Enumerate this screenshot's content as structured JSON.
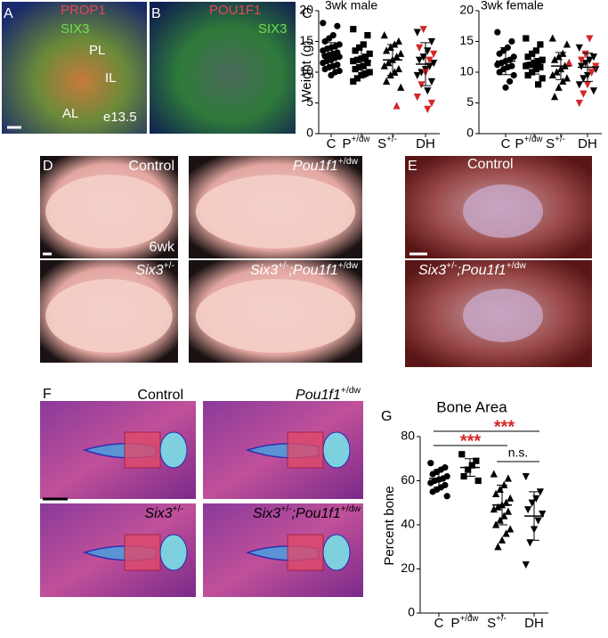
{
  "panel_letters": [
    "A",
    "B",
    "C",
    "D",
    "E",
    "F",
    "G"
  ],
  "images": [
    {
      "labels": [
        [
          {
            "text": "PROP1",
            "color": "#e8455a"
          }
        ],
        [
          {
            "text": "SIX3",
            "color": "#6fe04a"
          }
        ],
        [
          {
            "text": "PL"
          }
        ],
        [
          {
            "text": "IL"
          }
        ],
        [
          {
            "text": "AL"
          }
        ],
        [
          {
            "text": "e13.5"
          }
        ]
      ]
    },
    {
      "labels": [
        [
          {
            "text": "POU1F1",
            "color": "#e8455a"
          }
        ],
        [
          {
            "text": "SIX3",
            "color": "#6fe04a"
          }
        ]
      ]
    },
    {
      "labels": [
        [
          {
            "text": "Control"
          }
        ],
        [
          {
            "text": "6wk"
          }
        ]
      ]
    },
    {
      "labels": [
        [
          {
            "text": "Pou1f1",
            "italic": true
          },
          {
            "text": "+/dw",
            "sup": true
          }
        ]
      ]
    },
    {
      "labels": [
        [
          {
            "text": "Six3",
            "italic": true
          },
          {
            "text": "+/-",
            "sup": true
          }
        ]
      ]
    },
    {
      "labels": [
        [
          {
            "text": "Six3",
            "italic": true
          },
          {
            "text": "+/-",
            "sup": true
          },
          {
            "text": ";Pou1f1",
            "italic": true
          },
          {
            "text": "+/dw",
            "sup": true
          }
        ]
      ]
    },
    {
      "labels": [
        [
          {
            "text": "Control"
          }
        ]
      ]
    },
    {
      "labels": [
        [
          {
            "text": "Six3",
            "italic": true
          },
          {
            "text": "+/-",
            "sup": true
          },
          {
            "text": ";Pou1f1",
            "italic": true
          },
          {
            "text": "+/dw",
            "sup": true
          }
        ]
      ]
    },
    {
      "labels": [
        [
          {
            "text": "Control"
          }
        ]
      ]
    },
    {
      "labels": [
        [
          {
            "text": "Pou1f1",
            "italic": true
          },
          {
            "text": "+/dw",
            "sup": true
          }
        ]
      ]
    },
    {
      "labels": [
        [
          {
            "text": "Six3",
            "italic": true
          },
          {
            "text": "+/-",
            "sup": true
          }
        ]
      ]
    },
    {
      "labels": [
        [
          {
            "text": "Six3",
            "italic": true
          },
          {
            "text": "+/-",
            "sup": true
          },
          {
            "text": ";Pou1f1",
            "italic": true
          },
          {
            "text": "+/dw",
            "sup": true
          }
        ]
      ]
    }
  ],
  "chart_data": [
    {
      "type": "dot",
      "title": "3wk male",
      "ylabel": "Weight (g)",
      "ylim": [
        0,
        20
      ],
      "yticks": [
        0,
        5,
        10,
        15,
        20
      ],
      "red": "#d62728",
      "groups": [
        {
          "name": [
            {
              "text": "C"
            }
          ],
          "marker": "circle",
          "mean": 12.8,
          "sd": 2,
          "values": [
            18,
            17.5,
            16,
            15.5,
            15,
            14.5,
            14.2,
            14,
            13.8,
            13.5,
            13.2,
            13,
            12.8,
            12.6,
            12.5,
            12.3,
            12,
            11.8,
            11.5,
            11.2,
            11,
            10.8,
            10.5,
            10.2,
            10,
            9.5
          ],
          "red_values": []
        },
        {
          "name": [
            {
              "text": "P"
            },
            {
              "text": "+/dw",
              "sup": true
            }
          ],
          "marker": "square",
          "mean": 11.8,
          "sd": 2.6,
          "values": [
            17,
            16,
            14.5,
            14,
            13.5,
            13,
            12.5,
            12.2,
            12,
            11.8,
            11.5,
            11,
            10.8,
            10.5,
            10,
            9.8,
            9.5,
            9,
            8.5
          ],
          "red_values": []
        },
        {
          "name": [
            {
              "text": "S"
            },
            {
              "text": "+/-",
              "sup": true
            }
          ],
          "marker": "up",
          "mean": 12,
          "sd": 2.5,
          "values": [
            16,
            15,
            14.5,
            14,
            13.5,
            13,
            12.5,
            12,
            11.5,
            11,
            10.5,
            10,
            9.5,
            8.5,
            7.5
          ],
          "red_values": [
            4.5
          ]
        },
        {
          "name": [
            {
              "text": "DH"
            }
          ],
          "marker": "down",
          "mean": 11.3,
          "sd": 3.5,
          "values": [
            16.5,
            15,
            13.5,
            12.5,
            12,
            11.5,
            11,
            10.5,
            10,
            9.5,
            8.5,
            7
          ],
          "red_values": [
            17,
            14,
            13,
            12,
            10,
            8,
            6,
            5,
            4
          ]
        }
      ]
    },
    {
      "type": "dot",
      "title": "3wk female",
      "ylim": [
        0,
        20
      ],
      "yticks": [
        0,
        5,
        10,
        15,
        20
      ],
      "red": "#d62728",
      "groups": [
        {
          "name": [
            {
              "text": "C"
            }
          ],
          "marker": "circle",
          "mean": 11.8,
          "sd": 2.2,
          "values": [
            16.5,
            15,
            14,
            13.5,
            13,
            12.5,
            12,
            11.8,
            11.5,
            11.2,
            11,
            10.8,
            10.5,
            10,
            9.5,
            8.5,
            7.5
          ],
          "red_values": []
        },
        {
          "name": [
            {
              "text": "P"
            },
            {
              "text": "+/dw",
              "sup": true
            }
          ],
          "marker": "square",
          "mean": 11.5,
          "sd": 1.8,
          "values": [
            15.5,
            14.5,
            13.5,
            13,
            12.5,
            12,
            11.8,
            11.5,
            11.2,
            11,
            10.8,
            10.5,
            10,
            9.5,
            9,
            8
          ],
          "red_values": []
        },
        {
          "name": [
            {
              "text": "S"
            },
            {
              "text": "+/-",
              "sup": true
            }
          ],
          "marker": "up",
          "mean": 11,
          "sd": 2.2,
          "values": [
            15.5,
            14.5,
            13,
            12.5,
            12,
            11.5,
            11,
            10.5,
            10,
            9.5,
            9,
            8.5,
            7.5,
            6
          ],
          "red_values": [
            11.5
          ]
        },
        {
          "name": [
            {
              "text": "DH"
            }
          ],
          "marker": "down",
          "mean": 10.8,
          "sd": 2.3,
          "values": [
            14,
            12.5,
            12,
            11.5,
            11,
            10.5,
            10,
            9.5,
            9,
            8,
            7
          ],
          "red_values": [
            15.5,
            13,
            12,
            11,
            10,
            8,
            6.5,
            5
          ]
        }
      ]
    },
    {
      "type": "dot",
      "title": "Bone Area",
      "ylabel": "Percent bone",
      "ylim": [
        0,
        80
      ],
      "yticks": [
        0,
        20,
        40,
        60,
        80
      ],
      "red": "#d62728",
      "groups": [
        {
          "name": [
            {
              "text": "C"
            }
          ],
          "marker": "circle",
          "mean": 61,
          "sd": 4,
          "values": [
            68,
            66,
            65,
            64,
            63,
            62,
            61,
            60.5,
            60,
            59,
            58,
            57,
            56,
            55,
            53
          ],
          "red_values": []
        },
        {
          "name": [
            {
              "text": "P"
            },
            {
              "text": "+/dw",
              "sup": true
            }
          ],
          "marker": "square",
          "mean": 66,
          "sd": 4,
          "values": [
            72,
            69,
            67,
            65,
            62,
            60
          ],
          "red_values": []
        },
        {
          "name": [
            {
              "text": "S"
            },
            {
              "text": "+/-",
              "sup": true
            }
          ],
          "marker": "up",
          "mean": 49,
          "sd": 9,
          "values": [
            63,
            61,
            58,
            56,
            54,
            52,
            50,
            49,
            48,
            47,
            46,
            44,
            42,
            40,
            38,
            36,
            33,
            30
          ],
          "red_values": []
        },
        {
          "name": [
            {
              "text": "DH"
            }
          ],
          "marker": "down",
          "mean": 44,
          "sd": 11,
          "values": [
            62,
            55,
            52,
            50,
            47,
            45,
            42,
            38,
            32,
            22
          ],
          "red_values": []
        }
      ],
      "annotations": [
        {
          "text": "***",
          "from": 0,
          "to": 3,
          "color": "#d62728"
        },
        {
          "text": "***",
          "from": 0,
          "to": 2,
          "color": "#d62728"
        },
        {
          "text": "n.s.",
          "from": 2,
          "to": 3
        }
      ]
    }
  ]
}
